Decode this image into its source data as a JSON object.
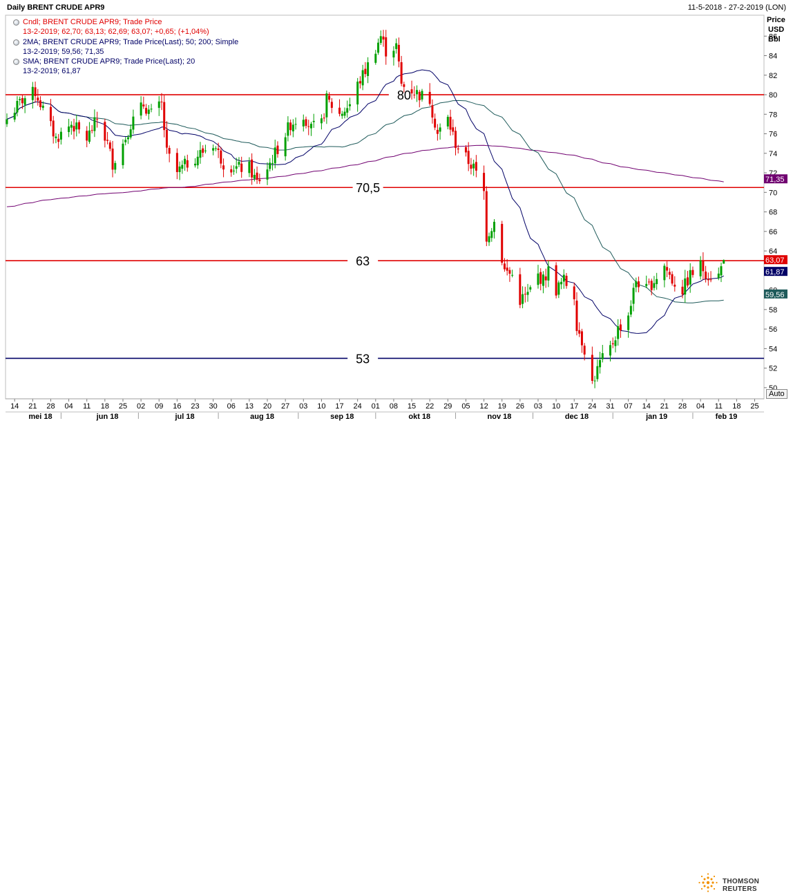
{
  "header": {
    "title": "Daily BRENT CRUDE APR9",
    "range": "11-5-2018 - 27-2-2019 (LON)"
  },
  "legend": [
    {
      "name": "Cndl; BRENT CRUDE APR9; Trade Price",
      "values": "13-2-2019; 62,70; 63,13; 62,69; 63,07; +0,65; (+1,04%)",
      "color": "#e00000"
    },
    {
      "name": "2MA; BRENT CRUDE APR9; Trade Price(Last);  50; 200; Simple",
      "values": "13-2-2019; 59,56; 71,35",
      "color": "#000066"
    },
    {
      "name": "SMA; BRENT CRUDE APR9; Trade Price(Last);  20",
      "values": "13-2-2019; 61,87",
      "color": "#000066"
    }
  ],
  "axis_title": [
    "Price",
    "USD",
    "Bbl"
  ],
  "auto_label": "Auto",
  "footer": {
    "brand": "THOMSON REUTERS"
  },
  "colors": {
    "up": "#00a000",
    "down": "#e00000",
    "ma20": "#000066",
    "ma50": "#1e5a5a",
    "ma200": "#700070",
    "hline_red": "#e00000",
    "hline_navy": "#000066"
  },
  "chart_data": {
    "type": "candlestick",
    "title": "Daily BRENT CRUDE APR9",
    "ylabel": "Price USD Bbl",
    "ylim": [
      49,
      88
    ],
    "y_ticks": [
      50,
      52,
      54,
      56,
      58,
      60,
      62,
      64,
      66,
      68,
      70,
      72,
      74,
      76,
      78,
      80,
      82,
      84,
      86
    ],
    "x_ticks": [
      {
        "date": "2018-05-14",
        "label": "14"
      },
      {
        "date": "2018-05-21",
        "label": "21"
      },
      {
        "date": "2018-05-28",
        "label": "28"
      },
      {
        "date": "2018-06-04",
        "label": "04"
      },
      {
        "date": "2018-06-11",
        "label": "11"
      },
      {
        "date": "2018-06-18",
        "label": "18"
      },
      {
        "date": "2018-06-25",
        "label": "25"
      },
      {
        "date": "2018-07-02",
        "label": "02"
      },
      {
        "date": "2018-07-09",
        "label": "09"
      },
      {
        "date": "2018-07-16",
        "label": "16"
      },
      {
        "date": "2018-07-23",
        "label": "23"
      },
      {
        "date": "2018-07-30",
        "label": "30"
      },
      {
        "date": "2018-08-06",
        "label": "06"
      },
      {
        "date": "2018-08-13",
        "label": "13"
      },
      {
        "date": "2018-08-20",
        "label": "20"
      },
      {
        "date": "2018-08-27",
        "label": "27"
      },
      {
        "date": "2018-09-03",
        "label": "03"
      },
      {
        "date": "2018-09-10",
        "label": "10"
      },
      {
        "date": "2018-09-17",
        "label": "17"
      },
      {
        "date": "2018-09-24",
        "label": "24"
      },
      {
        "date": "2018-10-01",
        "label": "01"
      },
      {
        "date": "2018-10-08",
        "label": "08"
      },
      {
        "date": "2018-10-15",
        "label": "15"
      },
      {
        "date": "2018-10-22",
        "label": "22"
      },
      {
        "date": "2018-10-29",
        "label": "29"
      },
      {
        "date": "2018-11-05",
        "label": "05"
      },
      {
        "date": "2018-11-12",
        "label": "12"
      },
      {
        "date": "2018-11-19",
        "label": "19"
      },
      {
        "date": "2018-11-26",
        "label": "26"
      },
      {
        "date": "2018-12-03",
        "label": "03"
      },
      {
        "date": "2018-12-10",
        "label": "10"
      },
      {
        "date": "2018-12-17",
        "label": "17"
      },
      {
        "date": "2018-12-24",
        "label": "24"
      },
      {
        "date": "2018-12-31",
        "label": "31"
      },
      {
        "date": "2019-01-07",
        "label": "07"
      },
      {
        "date": "2019-01-14",
        "label": "14"
      },
      {
        "date": "2019-01-21",
        "label": "21"
      },
      {
        "date": "2019-01-28",
        "label": "28"
      },
      {
        "date": "2019-02-04",
        "label": "04"
      },
      {
        "date": "2019-02-11",
        "label": "11"
      },
      {
        "date": "2019-02-18",
        "label": "18"
      },
      {
        "date": "2019-02-25",
        "label": "25"
      }
    ],
    "months": [
      {
        "label": "mei 18",
        "date": "2018-05-24"
      },
      {
        "label": "jun 18",
        "date": "2018-06-19"
      },
      {
        "label": "jul 18",
        "date": "2018-07-19"
      },
      {
        "label": "aug 18",
        "date": "2018-08-18"
      },
      {
        "label": "sep 18",
        "date": "2018-09-18"
      },
      {
        "label": "okt 18",
        "date": "2018-10-18"
      },
      {
        "label": "nov 18",
        "date": "2018-11-18"
      },
      {
        "label": "dec 18",
        "date": "2018-12-18"
      },
      {
        "label": "jan 19",
        "date": "2019-01-18"
      },
      {
        "label": "feb 19",
        "date": "2019-02-14"
      }
    ],
    "month_separators": [
      "2018-06-01",
      "2018-07-01",
      "2018-08-01",
      "2018-09-01",
      "2018-10-01",
      "2018-11-01",
      "2018-12-01",
      "2019-01-01",
      "2019-02-01"
    ],
    "x_start": "2018-05-11",
    "x_end": "2019-02-27",
    "horizontal_lines": [
      {
        "value": 80,
        "label": "80",
        "color": "#e00000",
        "label_date": "2018-10-12"
      },
      {
        "value": 70.5,
        "label": "70,5",
        "color": "#e00000",
        "label_date": "2018-09-28"
      },
      {
        "value": 63,
        "label": "63",
        "color": "#e00000",
        "label_date": "2018-09-26"
      },
      {
        "value": 53,
        "label": "53",
        "color": "#000066",
        "label_date": "2018-09-26"
      }
    ],
    "price_tags": [
      {
        "value": 71.35,
        "label": "71,35",
        "color": "#700070"
      },
      {
        "value": 63.07,
        "label": "63,07",
        "color": "#e00000"
      },
      {
        "value": 61.87,
        "label": "61,87",
        "color": "#000066"
      },
      {
        "value": 59.56,
        "label": "59,56",
        "color": "#1e5a5a"
      }
    ],
    "close_anchors": [
      [
        "2018-05-11",
        77.5
      ],
      [
        "2018-05-17",
        79.5
      ],
      [
        "2018-05-22",
        80.3
      ],
      [
        "2018-05-25",
        78.5
      ],
      [
        "2018-05-30",
        75.5
      ],
      [
        "2018-06-05",
        77
      ],
      [
        "2018-06-11",
        75.5
      ],
      [
        "2018-06-15",
        77.5
      ],
      [
        "2018-06-19",
        75
      ],
      [
        "2018-06-21",
        73
      ],
      [
        "2018-06-25",
        75
      ],
      [
        "2018-06-28",
        77
      ],
      [
        "2018-07-03",
        79
      ],
      [
        "2018-07-06",
        78
      ],
      [
        "2018-07-10",
        79
      ],
      [
        "2018-07-12",
        74
      ],
      [
        "2018-07-16",
        72
      ],
      [
        "2018-07-20",
        73
      ],
      [
        "2018-07-25",
        74
      ],
      [
        "2018-07-30",
        75
      ],
      [
        "2018-08-03",
        73
      ],
      [
        "2018-08-08",
        72.5
      ],
      [
        "2018-08-13",
        72.5
      ],
      [
        "2018-08-16",
        71
      ],
      [
        "2018-08-20",
        72.5
      ],
      [
        "2018-08-24",
        74.5
      ],
      [
        "2018-08-29",
        77
      ],
      [
        "2018-09-03",
        78
      ],
      [
        "2018-09-06",
        76.5
      ],
      [
        "2018-09-10",
        77
      ],
      [
        "2018-09-12",
        79.5
      ],
      [
        "2018-09-17",
        78
      ],
      [
        "2018-09-21",
        79
      ],
      [
        "2018-09-24",
        81
      ],
      [
        "2018-09-28",
        83
      ],
      [
        "2018-10-03",
        86
      ],
      [
        "2018-10-05",
        84.5
      ],
      [
        "2018-10-09",
        85
      ],
      [
        "2018-10-11",
        81
      ],
      [
        "2018-10-15",
        80.5
      ],
      [
        "2018-10-18",
        80
      ],
      [
        "2018-10-22",
        79.5
      ],
      [
        "2018-10-25",
        76
      ],
      [
        "2018-10-29",
        77.5
      ],
      [
        "2018-11-01",
        75
      ],
      [
        "2018-11-05",
        73.5
      ],
      [
        "2018-11-08",
        72.5
      ],
      [
        "2018-11-12",
        70
      ],
      [
        "2018-11-13",
        65.5
      ],
      [
        "2018-11-16",
        67
      ],
      [
        "2018-11-20",
        62
      ],
      [
        "2018-11-23",
        61.5
      ],
      [
        "2018-11-26",
        59
      ],
      [
        "2018-11-29",
        59.5
      ],
      [
        "2018-12-03",
        61.5
      ],
      [
        "2018-12-05",
        61
      ],
      [
        "2018-12-07",
        62
      ],
      [
        "2018-12-10",
        60
      ],
      [
        "2018-12-13",
        61
      ],
      [
        "2018-12-17",
        59.5
      ],
      [
        "2018-12-18",
        56.5
      ],
      [
        "2018-12-21",
        54
      ],
      [
        "2018-12-24",
        50.5
      ],
      [
        "2018-12-27",
        52.5
      ],
      [
        "2018-12-31",
        54
      ],
      [
        "2019-01-03",
        56
      ],
      [
        "2019-01-07",
        57.5
      ],
      [
        "2019-01-10",
        61
      ],
      [
        "2019-01-14",
        60
      ],
      [
        "2019-01-17",
        61
      ],
      [
        "2019-01-21",
        62.5
      ],
      [
        "2019-01-24",
        61
      ],
      [
        "2019-01-28",
        60
      ],
      [
        "2019-01-31",
        61.5
      ],
      [
        "2019-02-04",
        62.5
      ],
      [
        "2019-02-07",
        61.5
      ],
      [
        "2019-02-11",
        61.5
      ],
      [
        "2019-02-13",
        63.07
      ]
    ]
  }
}
